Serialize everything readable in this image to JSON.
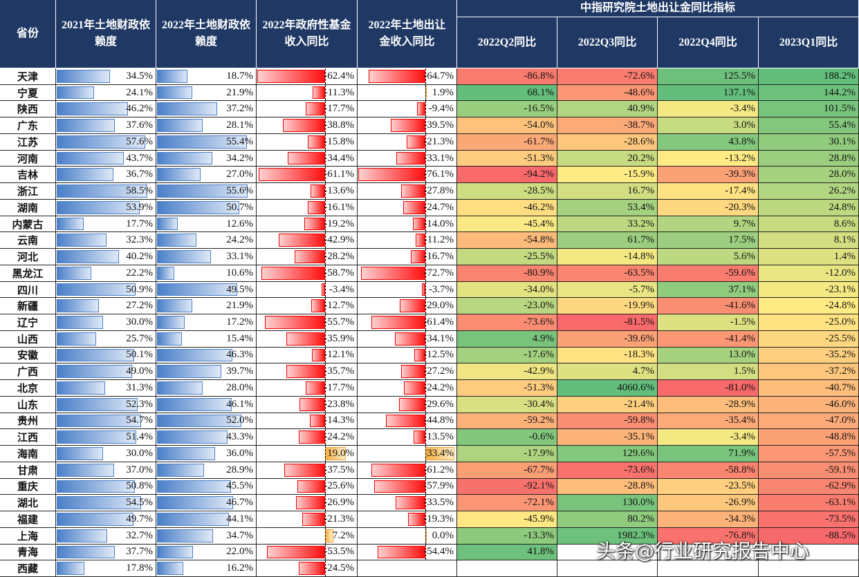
{
  "table": {
    "group_title": "中指研究院土地出让金同比指标",
    "header": [
      "省份",
      "2021年土地财政依赖度",
      "2022年土地财政依赖度",
      "2022年政府性基金收入同比",
      "2022年土地出让金收入同比",
      "2022Q2同比",
      "2022Q3同比",
      "2022Q4同比",
      "2023Q1同比"
    ],
    "rows": [
      [
        "天津",
        "34.5%",
        "18.7%",
        "-62.4%",
        "-64.7%",
        "-86.8%",
        "-72.6%",
        "125.5%",
        "188.2%"
      ],
      [
        "宁夏",
        "24.1%",
        "21.9%",
        "-11.3%",
        "1.9%",
        "68.1%",
        "-48.6%",
        "137.1%",
        "144.2%"
      ],
      [
        "陕西",
        "46.2%",
        "37.2%",
        "-17.7%",
        "-9.4%",
        "-16.5%",
        "40.9%",
        "-3.4%",
        "101.5%"
      ],
      [
        "广东",
        "37.6%",
        "28.1%",
        "-38.8%",
        "-39.5%",
        "-54.0%",
        "-38.7%",
        "3.0%",
        "55.4%"
      ],
      [
        "江苏",
        "57.6%",
        "55.4%",
        "-15.8%",
        "-21.3%",
        "-61.7%",
        "-28.6%",
        "43.8%",
        "30.1%"
      ],
      [
        "河南",
        "43.7%",
        "34.2%",
        "-34.4%",
        "-33.1%",
        "-51.3%",
        "20.2%",
        "-13.2%",
        "28.8%"
      ],
      [
        "吉林",
        "36.7%",
        "27.0%",
        "-61.1%",
        "-76.1%",
        "-94.2%",
        "-15.9%",
        "-39.3%",
        "28.0%"
      ],
      [
        "浙江",
        "58.5%",
        "55.6%",
        "-13.6%",
        "-27.8%",
        "-28.5%",
        "16.7%",
        "-17.4%",
        "26.2%"
      ],
      [
        "湖南",
        "53.9%",
        "50.7%",
        "-16.1%",
        "-24.7%",
        "-46.2%",
        "53.4%",
        "-20.3%",
        "24.8%"
      ],
      [
        "内蒙古",
        "17.7%",
        "12.6%",
        "-19.2%",
        "-14.0%",
        "-45.4%",
        "33.2%",
        "9.7%",
        "8.6%"
      ],
      [
        "云南",
        "32.3%",
        "24.2%",
        "-42.9%",
        "-11.2%",
        "-54.8%",
        "61.7%",
        "17.5%",
        "8.1%"
      ],
      [
        "河北",
        "40.2%",
        "33.1%",
        "-28.2%",
        "-16.7%",
        "-25.5%",
        "-14.8%",
        "5.6%",
        "1.4%"
      ],
      [
        "黑龙江",
        "22.2%",
        "10.6%",
        "-58.7%",
        "-72.7%",
        "-80.9%",
        "-63.5%",
        "-59.6%",
        "-12.0%"
      ],
      [
        "四川",
        "50.9%",
        "49.5%",
        "-3.4%",
        "-3.7%",
        "-34.0%",
        "-5.7%",
        "37.1%",
        "-23.1%"
      ],
      [
        "新疆",
        "27.2%",
        "21.9%",
        "-12.7%",
        "-29.0%",
        "-23.0%",
        "-19.9%",
        "-41.6%",
        "-24.8%"
      ],
      [
        "辽宁",
        "30.0%",
        "17.2%",
        "-55.7%",
        "-61.4%",
        "-73.6%",
        "-81.5%",
        "-1.5%",
        "-25.0%"
      ],
      [
        "山西",
        "25.7%",
        "15.4%",
        "-35.9%",
        "-34.1%",
        "4.9%",
        "-39.6%",
        "-41.4%",
        "-25.5%"
      ],
      [
        "安徽",
        "50.1%",
        "46.3%",
        "-12.1%",
        "-12.5%",
        "-17.6%",
        "-18.3%",
        "13.0%",
        "-35.2%"
      ],
      [
        "广西",
        "49.0%",
        "39.7%",
        "-35.7%",
        "-27.2%",
        "-42.9%",
        "4.7%",
        "1.5%",
        "-37.2%"
      ],
      [
        "北京",
        "31.3%",
        "28.0%",
        "-17.7%",
        "-24.2%",
        "-51.3%",
        "4060.6%",
        "-81.0%",
        "-40.7%"
      ],
      [
        "山东",
        "52.3%",
        "46.1%",
        "-23.8%",
        "-29.6%",
        "-30.4%",
        "-21.4%",
        "-28.9%",
        "-46.0%"
      ],
      [
        "贵州",
        "54.7%",
        "52.0%",
        "-14.3%",
        "-44.8%",
        "-59.2%",
        "-59.8%",
        "-35.4%",
        "-47.0%"
      ],
      [
        "江西",
        "51.4%",
        "43.3%",
        "-24.2%",
        "-13.5%",
        "-0.6%",
        "-35.1%",
        "-3.4%",
        "-48.8%"
      ],
      [
        "海南",
        "30.0%",
        "36.0%",
        "19.0%",
        "33.4%",
        "-17.9%",
        "129.6%",
        "71.9%",
        "-57.5%"
      ],
      [
        "甘肃",
        "37.0%",
        "28.9%",
        "-37.5%",
        "-61.2%",
        "-67.7%",
        "-73.6%",
        "-58.8%",
        "-59.1%"
      ],
      [
        "重庆",
        "50.8%",
        "45.5%",
        "-25.6%",
        "-57.9%",
        "-92.1%",
        "-28.8%",
        "-23.5%",
        "-62.9%"
      ],
      [
        "湖北",
        "54.5%",
        "46.7%",
        "-26.9%",
        "-33.5%",
        "-72.1%",
        "130.0%",
        "-26.9%",
        "-63.1%"
      ],
      [
        "福建",
        "49.7%",
        "44.1%",
        "-21.3%",
        "-19.3%",
        "-45.9%",
        "80.2%",
        "-34.3%",
        "-73.5%"
      ],
      [
        "上海",
        "32.7%",
        "34.7%",
        "7.2%",
        "0.0%",
        "-13.3%",
        "1982.3%",
        "-76.8%",
        "-88.5%"
      ],
      [
        "青海",
        "37.7%",
        "22.0%",
        "-53.5%",
        "-54.4%",
        "41.8%",
        null,
        null,
        null
      ],
      [
        "西藏",
        "17.8%",
        "16.2%",
        "-24.5%",
        null,
        null,
        null,
        null,
        null
      ]
    ]
  },
  "watermark": "头条@行业研究报告中心"
}
